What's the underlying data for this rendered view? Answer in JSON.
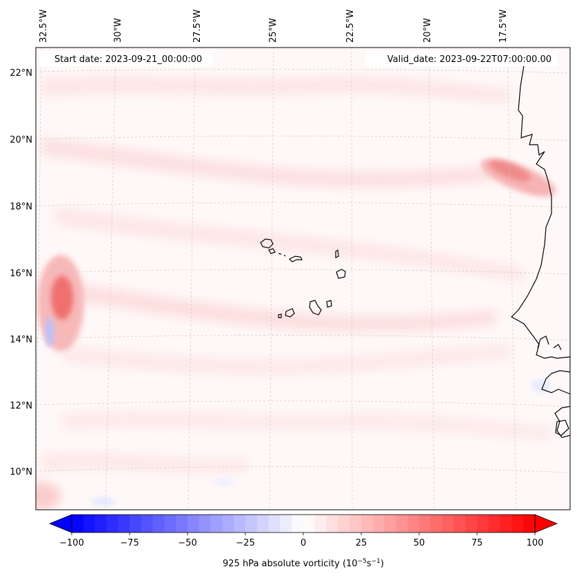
{
  "header": {
    "start_date": "Start date: 2023-09-21_00:00:00",
    "valid_date": "Valid_date: 2023-09-22T07:00:00.00"
  },
  "map": {
    "lon_labels": [
      "32.5°W",
      "30°W",
      "27.5°W",
      "25°W",
      "22.5°W",
      "20°W",
      "17.5°W"
    ],
    "lat_labels": [
      "22°N",
      "20°N",
      "18°N",
      "16°N",
      "14°N",
      "12°N",
      "10°N"
    ]
  },
  "colorbar": {
    "label_prefix": "925 hPa absolute vorticity (10",
    "label_exp1": "−5",
    "label_mid": "s",
    "label_exp2": "−1",
    "label_suffix": ")",
    "ticks": [
      "−100",
      "−75",
      "−50",
      "−25",
      "0",
      "25",
      "50",
      "75",
      "100"
    ],
    "min": -100,
    "max": 100,
    "levels": 40,
    "neg_color": "#0000ff",
    "pos_color": "#ff0000"
  },
  "colors": {
    "coast": "#000000",
    "grid": "#c8c8c8",
    "background": "#fff8f8"
  }
}
